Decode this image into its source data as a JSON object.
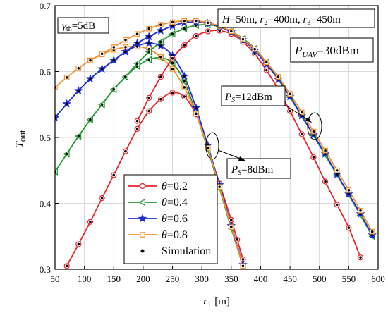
{
  "chart_data": {
    "type": "line",
    "xlabel_sym": "r",
    "xlabel_sub": "1",
    "xlabel_unit": " [m]",
    "ylabel_sym": "T",
    "ylabel_sub": "out",
    "xlim": [
      50,
      600
    ],
    "ylim": [
      0.3,
      0.7
    ],
    "xticks": [
      50,
      100,
      150,
      200,
      250,
      300,
      350,
      400,
      450,
      500,
      550,
      600
    ],
    "yticks": [
      0.3,
      0.4,
      0.5,
      0.6,
      0.7
    ],
    "grid": true,
    "colors": {
      "theta_0_2": "#e8242a",
      "theta_0_4": "#1e9a2f",
      "theta_0_6": "#1f2fd6",
      "theta_0_8": "#f4902a",
      "simulation": "#000000"
    },
    "series": [
      {
        "name": "θ=0.2",
        "color": "#e8242a",
        "marker": "circle",
        "group": "Ps8",
        "x": [
          70,
          90,
          110,
          130,
          150,
          170,
          190,
          210,
          230,
          250,
          270,
          290,
          310,
          330,
          350,
          360,
          370
        ],
        "y": [
          0.305,
          0.338,
          0.372,
          0.408,
          0.443,
          0.479,
          0.513,
          0.54,
          0.558,
          0.568,
          0.562,
          0.535,
          0.485,
          0.43,
          0.375,
          0.345,
          0.315
        ]
      },
      {
        "name": "θ=0.4",
        "color": "#1e9a2f",
        "marker": "triangle",
        "group": "Ps8",
        "x": [
          50,
          70,
          90,
          110,
          130,
          150,
          170,
          190,
          210,
          230,
          250,
          270,
          290,
          310,
          330,
          350,
          370
        ],
        "y": [
          0.448,
          0.475,
          0.502,
          0.527,
          0.55,
          0.573,
          0.592,
          0.608,
          0.618,
          0.621,
          0.613,
          0.585,
          0.537,
          0.482,
          0.423,
          0.362,
          0.305
        ]
      },
      {
        "name": "θ=0.6",
        "color": "#1f2fd6",
        "marker": "star",
        "group": "Ps8",
        "x": [
          50,
          70,
          90,
          110,
          130,
          150,
          170,
          190,
          210,
          230,
          250,
          270,
          290,
          310,
          330,
          350,
          370
        ],
        "y": [
          0.53,
          0.551,
          0.571,
          0.589,
          0.604,
          0.617,
          0.63,
          0.639,
          0.643,
          0.639,
          0.624,
          0.593,
          0.545,
          0.488,
          0.428,
          0.366,
          0.307
        ]
      },
      {
        "name": "θ=0.8",
        "color": "#f4902a",
        "marker": "square",
        "group": "Ps8",
        "x": [
          50,
          70,
          90,
          110,
          130,
          150,
          170,
          190,
          210,
          230,
          250,
          270,
          290,
          310,
          330,
          350,
          370
        ],
        "y": [
          0.576,
          0.591,
          0.605,
          0.617,
          0.626,
          0.633,
          0.637,
          0.638,
          0.634,
          0.622,
          0.604,
          0.576,
          0.536,
          0.484,
          0.425,
          0.364,
          0.305
        ]
      },
      {
        "name": "θ=0.2",
        "color": "#e8242a",
        "marker": "circle",
        "group": "Ps12",
        "x": [
          190,
          210,
          230,
          250,
          270,
          290,
          310,
          330,
          350,
          370,
          390,
          410,
          430,
          450,
          470,
          490,
          510,
          530,
          550,
          570
        ],
        "y": [
          0.525,
          0.56,
          0.592,
          0.62,
          0.64,
          0.654,
          0.661,
          0.662,
          0.657,
          0.645,
          0.627,
          0.602,
          0.573,
          0.54,
          0.505,
          0.47,
          0.433,
          0.398,
          0.363,
          0.318
        ]
      },
      {
        "name": "θ=0.4",
        "color": "#1e9a2f",
        "marker": "triangle",
        "group": "Ps12",
        "x": [
          130,
          150,
          170,
          190,
          210,
          230,
          250,
          270,
          290,
          310,
          330,
          350,
          370,
          390,
          410,
          430,
          450,
          470,
          490,
          510,
          530,
          550,
          570,
          590
        ],
        "y": [
          0.55,
          0.573,
          0.592,
          0.612,
          0.63,
          0.645,
          0.657,
          0.665,
          0.67,
          0.671,
          0.668,
          0.661,
          0.65,
          0.635,
          0.614,
          0.59,
          0.561,
          0.532,
          0.503,
          0.473,
          0.443,
          0.413,
          0.382,
          0.35
        ]
      },
      {
        "name": "θ=0.6",
        "color": "#1f2fd6",
        "marker": "star",
        "group": "Ps12",
        "x": [
          130,
          150,
          170,
          190,
          210,
          230,
          250,
          270,
          290,
          310,
          330,
          350,
          370,
          390,
          410,
          430,
          450,
          470,
          490,
          510,
          530,
          550,
          570,
          590
        ],
        "y": [
          0.604,
          0.617,
          0.63,
          0.643,
          0.653,
          0.662,
          0.669,
          0.674,
          0.675,
          0.673,
          0.668,
          0.66,
          0.648,
          0.632,
          0.611,
          0.588,
          0.562,
          0.533,
          0.504,
          0.475,
          0.444,
          0.414,
          0.384,
          0.352
        ]
      },
      {
        "name": "θ=0.8",
        "color": "#f4902a",
        "marker": "square",
        "group": "Ps12",
        "x": [
          110,
          130,
          150,
          170,
          190,
          210,
          230,
          250,
          270,
          290,
          310,
          330,
          350,
          370,
          390,
          410,
          430,
          450,
          470,
          490,
          510,
          530,
          550,
          570,
          590
        ],
        "y": [
          0.617,
          0.627,
          0.637,
          0.648,
          0.657,
          0.665,
          0.671,
          0.675,
          0.677,
          0.677,
          0.674,
          0.669,
          0.661,
          0.649,
          0.634,
          0.614,
          0.592,
          0.566,
          0.538,
          0.509,
          0.48,
          0.45,
          0.42,
          0.389,
          0.357
        ]
      }
    ],
    "legend": {
      "placement": "bottom-center",
      "theta_sym": "θ",
      "entries": [
        {
          "label": "=0.2",
          "color": "#e8242a",
          "marker": "circle"
        },
        {
          "label": "=0.4",
          "color": "#1e9a2f",
          "marker": "triangle"
        },
        {
          "label": "=0.6",
          "color": "#1f2fd6",
          "marker": "star"
        },
        {
          "label": "=0.8",
          "color": "#f4902a",
          "marker": "square"
        }
      ],
      "sim_label": "Simulation"
    },
    "annotations": {
      "gamma_sym": "γ",
      "gamma_sub": "th",
      "gamma_val": "=5dB",
      "h_sym": "H",
      "h_val": "=50m, ",
      "r2_sym": "r",
      "r2_sub": "2",
      "r2_val": "=400m, ",
      "r3_sym": "r",
      "r3_sub": "3",
      "r3_val": "=450m",
      "puav_sym": "P",
      "puav_sub": "UAV",
      "puav_val": "=30dBm",
      "ps12_sym": "P",
      "ps12_sub": "S",
      "ps12_val": "=12dBm",
      "ps8_sym": "P",
      "ps8_sub": "S",
      "ps8_val": "=8dBm"
    }
  }
}
